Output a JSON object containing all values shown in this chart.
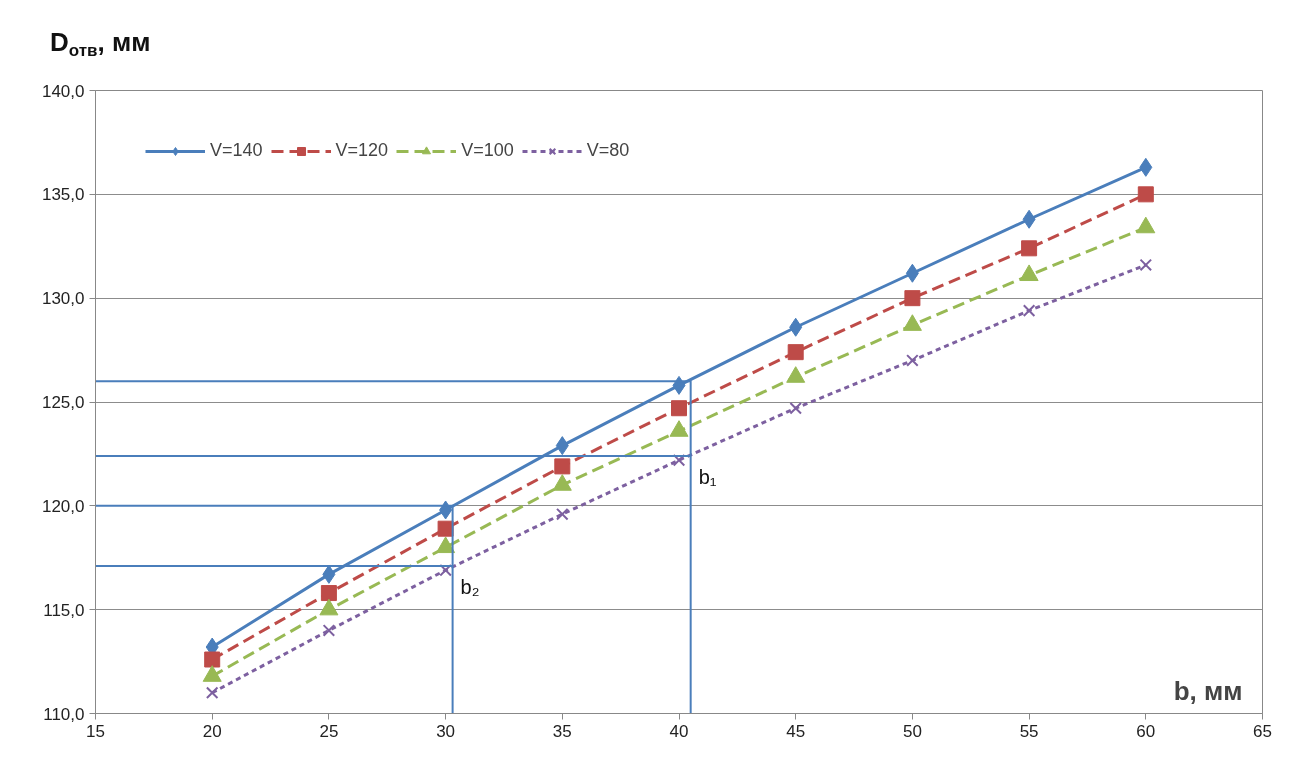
{
  "chart_data": {
    "type": "line",
    "ylabel": "D$_{отв}$, мм",
    "xlabel": "b, мм",
    "x": [
      20,
      25,
      30,
      35,
      40,
      45,
      50,
      55,
      60
    ],
    "series": [
      {
        "name": "V=140",
        "color": "#4a7ebb",
        "marker": "diamond",
        "line_style": "solid",
        "values": [
          113.2,
          116.7,
          119.8,
          122.9,
          125.8,
          128.6,
          131.2,
          133.8,
          136.3
        ]
      },
      {
        "name": "V=120",
        "color": "#be4b48",
        "marker": "square",
        "line_style": "dashed",
        "values": [
          112.6,
          115.8,
          118.9,
          121.9,
          124.7,
          127.4,
          130.0,
          132.4,
          135.0
        ]
      },
      {
        "name": "V=100",
        "color": "#98b954",
        "marker": "triangle",
        "line_style": "dashed",
        "values": [
          111.8,
          115.0,
          118.0,
          121.0,
          123.6,
          126.2,
          128.7,
          131.1,
          133.4
        ]
      },
      {
        "name": "V=80",
        "color": "#7d60a0",
        "marker": "cross",
        "line_style": "dotted",
        "values": [
          111.0,
          114.0,
          116.9,
          119.6,
          122.2,
          124.7,
          127.0,
          129.4,
          131.6
        ]
      },
      {
        "color": "#4a7ebb",
        "marker": "none",
        "line_style": "solid",
        "x": [
          15,
          40.5,
          40.5
        ],
        "values": [
          126.0,
          126.0,
          110.0
        ]
      },
      {
        "color": "#4a7ebb",
        "marker": "none",
        "line_style": "solid",
        "x": [
          15,
          40.5
        ],
        "values": [
          122.4,
          122.4
        ]
      },
      {
        "color": "#4a7ebb",
        "marker": "none",
        "line_style": "solid",
        "x": [
          15,
          30.3,
          30.3
        ],
        "values": [
          120.0,
          120.0,
          110.0
        ]
      },
      {
        "color": "#4a7ebb",
        "marker": "none",
        "line_style": "solid",
        "x": [
          15,
          30.3
        ],
        "values": [
          117.1,
          117.1
        ]
      }
    ],
    "annotations": [
      {
        "text": "b₁",
        "x": 40.5,
        "y": 122.4
      },
      {
        "text": "b₂",
        "x": 30.3,
        "y": 117.1
      }
    ],
    "xlim": [
      15,
      65
    ],
    "xticks": [
      15,
      20,
      25,
      30,
      35,
      40,
      45,
      50,
      55,
      60,
      65
    ],
    "ylim": [
      110,
      140
    ],
    "yticks": [
      {
        "value": 110,
        "label": "110,0"
      },
      {
        "value": 115,
        "label": "115,0"
      },
      {
        "value": 120,
        "label": "120,0"
      },
      {
        "value": 125,
        "label": "125,0"
      },
      {
        "value": 130,
        "label": "130,0"
      },
      {
        "value": 135,
        "label": "135,0"
      },
      {
        "value": 140,
        "label": "140,0"
      }
    ],
    "grid": "y",
    "legend": "top left"
  }
}
